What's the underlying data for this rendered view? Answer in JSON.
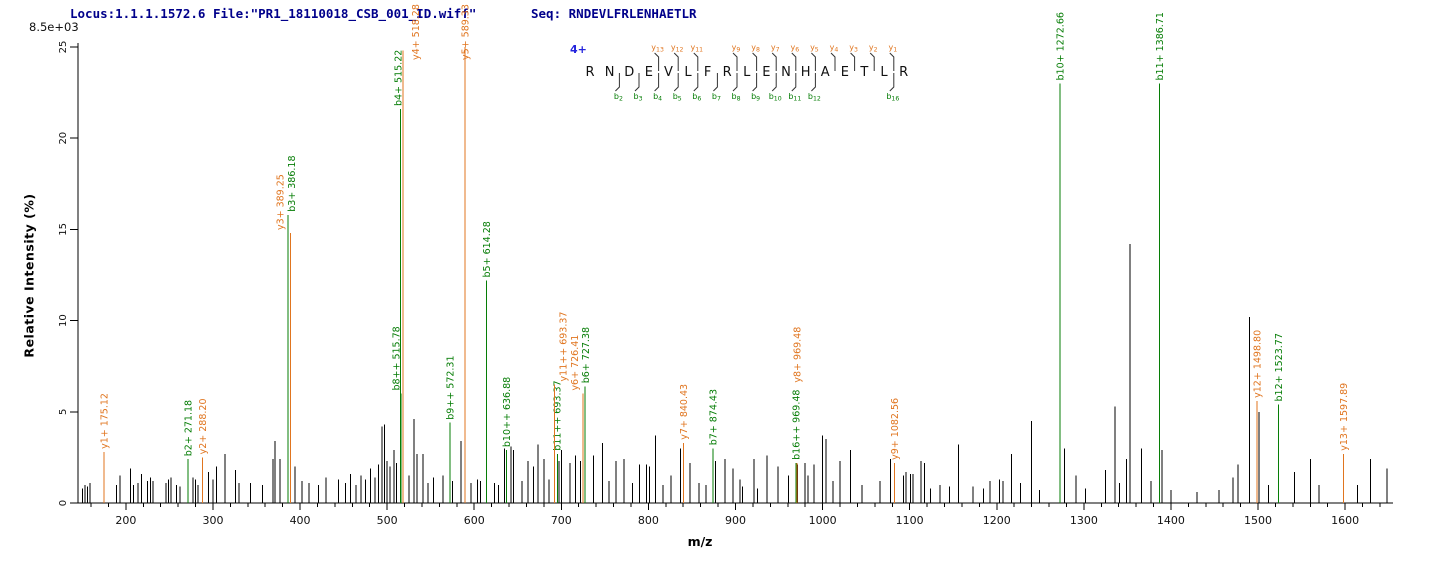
{
  "header": {
    "locus_file": "Locus:1.1.1.1572.6 File:\"PR1_18110018_CSB_001_ID.wiff\"",
    "seq_label": "Seq:",
    "sequence": "RNDEVLFRLENHAETLR"
  },
  "axes": {
    "intensity_scale": "8.5e+03",
    "y_title": "Relative  Intensity  (%)",
    "x_title": "m/z",
    "y_ticks": [
      0,
      5,
      10,
      15,
      20,
      25
    ],
    "x_ticks": [
      200,
      300,
      400,
      500,
      600,
      700,
      800,
      900,
      1000,
      1100,
      1200,
      1300,
      1400,
      1500,
      1600
    ]
  },
  "colors": {
    "b_ion": "#067d06",
    "y_ion": "#E0751F",
    "peak": "#000000",
    "header_text": "#00008B",
    "charge": "#2424DD",
    "axis": "#000000"
  },
  "sequence_diagram": {
    "charge": "4+",
    "residues": [
      "R",
      "N",
      "D",
      "E",
      "V",
      "L",
      "F",
      "R",
      "L",
      "E",
      "N",
      "H",
      "A",
      "E",
      "T",
      "L",
      "R"
    ],
    "y_ions": [
      {
        "label": "y",
        "num": "13",
        "after": 4
      },
      {
        "label": "y",
        "num": "12",
        "after": 5
      },
      {
        "label": "y",
        "num": "11",
        "after": 6
      },
      {
        "label": "y",
        "num": "9",
        "after": 8
      },
      {
        "label": "y",
        "num": "8",
        "after": 9
      },
      {
        "label": "y",
        "num": "7",
        "after": 10
      },
      {
        "label": "y",
        "num": "6",
        "after": 11
      },
      {
        "label": "y",
        "num": "5",
        "after": 12
      },
      {
        "label": "y",
        "num": "4",
        "after": 13
      },
      {
        "label": "y",
        "num": "3",
        "after": 14
      },
      {
        "label": "y",
        "num": "2",
        "after": 15
      },
      {
        "label": "y",
        "num": "1",
        "after": 16
      }
    ],
    "b_ions": [
      {
        "label": "b",
        "num": "2",
        "after": 2
      },
      {
        "label": "b",
        "num": "3",
        "after": 3
      },
      {
        "label": "b",
        "num": "4",
        "after": 4
      },
      {
        "label": "b",
        "num": "5",
        "after": 5
      },
      {
        "label": "b",
        "num": "6",
        "after": 6
      },
      {
        "label": "b",
        "num": "7",
        "after": 7
      },
      {
        "label": "b",
        "num": "8",
        "after": 8
      },
      {
        "label": "b",
        "num": "9",
        "after": 9
      },
      {
        "label": "b",
        "num": "10",
        "after": 10
      },
      {
        "label": "b",
        "num": "11",
        "after": 11
      },
      {
        "label": "b",
        "num": "12",
        "after": 12
      },
      {
        "label": "b",
        "num": "16",
        "after": 16
      }
    ]
  },
  "chart_data": {
    "type": "bar",
    "subtype": "ms2-fragment-spectrum",
    "xlabel": "m/z",
    "ylabel": "Relative  Intensity  (%)",
    "x_range": [
      145,
      1655
    ],
    "y_range": [
      0,
      25
    ],
    "base_peak_intensity": "8.5e+03",
    "labeled_peaks": [
      {
        "ion": "y",
        "label": "y1+ 175.12",
        "mz": 175.12,
        "intensity": 2.8
      },
      {
        "ion": "b",
        "label": "b2+ 271.18",
        "mz": 271.18,
        "intensity": 2.4
      },
      {
        "ion": "y",
        "label": "y2+ 288.20",
        "mz": 288.2,
        "intensity": 2.5
      },
      {
        "ion": "b",
        "label": "b3+ 386.18",
        "mz": 386.18,
        "intensity": 15.8,
        "ldx": 7
      },
      {
        "ion": "y",
        "label": "y3+ 389.25",
        "mz": 389.25,
        "intensity": 14.8,
        "ldx": -7
      },
      {
        "ion": "b",
        "label": "b4+ 515.22",
        "mz": 515.22,
        "intensity": 21.6,
        "ldx": 1
      },
      {
        "ion": "b",
        "label": "b8++ 515.78",
        "mz": 515.78,
        "intensity": 6.0,
        "ldx": -1.5
      },
      {
        "ion": "y",
        "label": "y4+ 518.28",
        "mz": 518.28,
        "intensity": 24.8,
        "ldx": 16
      },
      {
        "ion": "b",
        "label": "b9++ 572.31",
        "mz": 572.31,
        "intensity": 4.4
      },
      {
        "ion": "y",
        "label": "y5+ 589.33",
        "mz": 589.33,
        "intensity": 25.0
      },
      {
        "ion": "b",
        "label": "b5+ 614.28",
        "mz": 614.28,
        "intensity": 12.2
      },
      {
        "ion": "b",
        "label": "b10++ 636.88",
        "mz": 636.88,
        "intensity": 2.9
      },
      {
        "ion": "b",
        "label": "b11++ 693.37",
        "mz": 693.37,
        "intensity": 2.7,
        "dxp": 2,
        "ldx": 3
      },
      {
        "ion": "y",
        "label": "y11++ 693.37",
        "mz": 693.37,
        "intensity": 6.5,
        "dxp": -1,
        "ldx": 12
      },
      {
        "ion": "y",
        "label": "y6+ 726.41",
        "mz": 726.41,
        "intensity": 6.0,
        "dxp": -1.5,
        "ldx": -5
      },
      {
        "ion": "b",
        "label": "b6+ 727.38",
        "mz": 727.38,
        "intensity": 6.4,
        "ldx": 4
      },
      {
        "ion": "y",
        "label": "y7+ 840.43",
        "mz": 840.43,
        "intensity": 3.3
      },
      {
        "ion": "b",
        "label": "b7+ 874.43",
        "mz": 874.43,
        "intensity": 3.0
      },
      {
        "ion": "b",
        "label": "b16++ 969.48",
        "mz": 969.48,
        "intensity": 2.2
      },
      {
        "ion": "y",
        "label": "y8+ 969.48",
        "mz": 969.48,
        "intensity": 2.2,
        "dxp": 1,
        "lb": 6.6
      },
      {
        "ion": "y",
        "label": "y9+ 1082.56",
        "mz": 1082.56,
        "intensity": 2.2
      },
      {
        "ion": "b",
        "label": "b10+ 1272.66",
        "mz": 1272.66,
        "intensity": 23.0
      },
      {
        "ion": "b",
        "label": "b11+ 1386.71",
        "mz": 1386.71,
        "intensity": 23.0
      },
      {
        "ion": "y",
        "label": "y12+ 1498.80",
        "mz": 1498.8,
        "intensity": 5.6
      },
      {
        "ion": "b",
        "label": "b12+ 1523.77",
        "mz": 1523.77,
        "intensity": 5.4
      },
      {
        "ion": "y",
        "label": "y13+ 1597.89",
        "mz": 1597.89,
        "intensity": 2.7
      }
    ],
    "background_peaks": [
      [
        150,
        0.8
      ],
      [
        153,
        1.0
      ],
      [
        156,
        0.9
      ],
      [
        159,
        1.1
      ],
      [
        189,
        1.0
      ],
      [
        193,
        1.5
      ],
      [
        205,
        1.9
      ],
      [
        209,
        1.0
      ],
      [
        214,
        1.1
      ],
      [
        218,
        1.6
      ],
      [
        225,
        1.2
      ],
      [
        228,
        1.4
      ],
      [
        231,
        1.2
      ],
      [
        246,
        1.1
      ],
      [
        249,
        1.3
      ],
      [
        252,
        1.4
      ],
      [
        258,
        1.0
      ],
      [
        262,
        0.9
      ],
      [
        277,
        1.4
      ],
      [
        280,
        1.3
      ],
      [
        283,
        1.0
      ],
      [
        295,
        1.7
      ],
      [
        300,
        1.3
      ],
      [
        304,
        2.0
      ],
      [
        314,
        2.7
      ],
      [
        326,
        1.8
      ],
      [
        330,
        1.1
      ],
      [
        343,
        1.1
      ],
      [
        357,
        1.0
      ],
      [
        369,
        2.4
      ],
      [
        371,
        3.4
      ],
      [
        377,
        2.4
      ],
      [
        394,
        2.0
      ],
      [
        402,
        1.2
      ],
      [
        410,
        1.1
      ],
      [
        421,
        1.0
      ],
      [
        430,
        1.4
      ],
      [
        444,
        1.3
      ],
      [
        452,
        1.1
      ],
      [
        458,
        1.6
      ],
      [
        464,
        1.0
      ],
      [
        470,
        1.5
      ],
      [
        475,
        1.3
      ],
      [
        481,
        1.9
      ],
      [
        486,
        1.4
      ],
      [
        490,
        2.1
      ],
      [
        494,
        4.2
      ],
      [
        497,
        4.3
      ],
      [
        500,
        2.3
      ],
      [
        503,
        2.0
      ],
      [
        508,
        2.9
      ],
      [
        511,
        2.2
      ],
      [
        525,
        1.5
      ],
      [
        531,
        4.6
      ],
      [
        534,
        2.7
      ],
      [
        541,
        2.7
      ],
      [
        547,
        1.1
      ],
      [
        553,
        1.4
      ],
      [
        564,
        1.5
      ],
      [
        575,
        1.2
      ],
      [
        585,
        3.4
      ],
      [
        596,
        1.1
      ],
      [
        604,
        1.3
      ],
      [
        607,
        1.2
      ],
      [
        623,
        1.1
      ],
      [
        628,
        1.0
      ],
      [
        635,
        3.0
      ],
      [
        642,
        3.1
      ],
      [
        645,
        2.9
      ],
      [
        655,
        1.2
      ],
      [
        662,
        2.3
      ],
      [
        668,
        2.0
      ],
      [
        673,
        3.2
      ],
      [
        680,
        2.4
      ],
      [
        686,
        1.3
      ],
      [
        697.5,
        2.3
      ],
      [
        700,
        2.9
      ],
      [
        710,
        2.2
      ],
      [
        716,
        2.6
      ],
      [
        722,
        2.3
      ],
      [
        737,
        2.6
      ],
      [
        747,
        3.3
      ],
      [
        755,
        1.2
      ],
      [
        763,
        2.3
      ],
      [
        772,
        2.4
      ],
      [
        782,
        1.1
      ],
      [
        790,
        2.1
      ],
      [
        798,
        2.1
      ],
      [
        801,
        2.0
      ],
      [
        808,
        3.7
      ],
      [
        817,
        1.0
      ],
      [
        826,
        1.5
      ],
      [
        837,
        3.0
      ],
      [
        848,
        2.2
      ],
      [
        858,
        1.1
      ],
      [
        866,
        1.0
      ],
      [
        877,
        2.3
      ],
      [
        888,
        2.4
      ],
      [
        897,
        1.9
      ],
      [
        905,
        1.3
      ],
      [
        908,
        0.9
      ],
      [
        921,
        2.4
      ],
      [
        925,
        0.8
      ],
      [
        936,
        2.6
      ],
      [
        949,
        2.0
      ],
      [
        961,
        1.5
      ],
      [
        971,
        2.1
      ],
      [
        980,
        2.2
      ],
      [
        983,
        1.5
      ],
      [
        990,
        2.1
      ],
      [
        1000,
        3.7
      ],
      [
        1004,
        3.5
      ],
      [
        1012,
        1.2
      ],
      [
        1020,
        2.3
      ],
      [
        1032,
        2.9
      ],
      [
        1045,
        1.0
      ],
      [
        1066,
        1.2
      ],
      [
        1078,
        2.4
      ],
      [
        1093,
        1.5
      ],
      [
        1096,
        1.7
      ],
      [
        1101,
        1.6
      ],
      [
        1104,
        1.6
      ],
      [
        1113,
        2.3
      ],
      [
        1117,
        2.2
      ],
      [
        1124,
        0.8
      ],
      [
        1135,
        1.0
      ],
      [
        1146,
        0.9
      ],
      [
        1156,
        3.2
      ],
      [
        1173,
        0.9
      ],
      [
        1185,
        0.8
      ],
      [
        1192,
        1.2
      ],
      [
        1203,
        1.3
      ],
      [
        1207,
        1.2
      ],
      [
        1217,
        2.7
      ],
      [
        1227,
        1.1
      ],
      [
        1240,
        4.5
      ],
      [
        1249,
        0.7
      ],
      [
        1278,
        3.0
      ],
      [
        1291,
        1.5
      ],
      [
        1302,
        0.8
      ],
      [
        1325,
        1.8
      ],
      [
        1336,
        5.3
      ],
      [
        1341,
        1.1
      ],
      [
        1349,
        2.4
      ],
      [
        1353,
        14.2
      ],
      [
        1366,
        3.0
      ],
      [
        1377,
        1.2
      ],
      [
        1390,
        2.9
      ],
      [
        1400,
        0.7
      ],
      [
        1430,
        0.6
      ],
      [
        1455,
        0.7
      ],
      [
        1471,
        1.4
      ],
      [
        1477,
        2.1
      ],
      [
        1490,
        10.2
      ],
      [
        1501,
        5.0
      ],
      [
        1512,
        1.0
      ],
      [
        1542,
        1.7
      ],
      [
        1560,
        2.4
      ],
      [
        1570,
        1.0
      ],
      [
        1614,
        1.0
      ],
      [
        1629,
        2.4
      ],
      [
        1648,
        1.9
      ]
    ]
  }
}
